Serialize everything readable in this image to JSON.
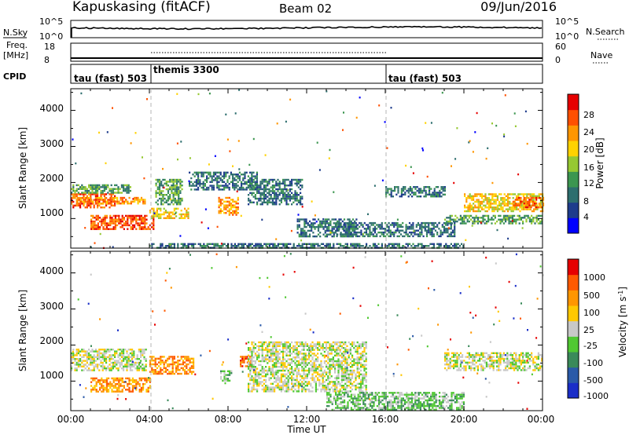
{
  "header": {
    "station": "Kapuskasing (fitACF)",
    "beam": "Beam 02",
    "date": "09/Jun/2016"
  },
  "panels": {
    "nsky_label": "N.Sky",
    "nsky_ticks": [
      "10^5",
      "10^0"
    ],
    "nsearch_label": "N.Search",
    "nsearch_ticks": [
      "10^5",
      "10^0"
    ],
    "freq_label_1": "Freq.",
    "freq_label_2": "[MHz]",
    "freq_ticks": [
      "18",
      "8"
    ],
    "nave_label": "Nave",
    "nave_ticks": [
      "60",
      "0"
    ],
    "cpid_label": "CPID",
    "cpid_segments": [
      "tau (fast) 503",
      "themis 3300",
      "tau (fast) 503"
    ]
  },
  "axes": {
    "ylabel": "Slant Range [km]",
    "yticks": [
      "1000",
      "2000",
      "3000",
      "4000"
    ],
    "xlabel": "Time UT",
    "xticks": [
      "00:00",
      "04:00",
      "08:00",
      "12:00",
      "16:00",
      "20:00",
      "00:00"
    ]
  },
  "power_colorbar": {
    "label": "Power [dB]",
    "ticks": [
      "4",
      "8",
      "12",
      "16",
      "20",
      "24",
      "28"
    ],
    "colors": [
      "#0000ff",
      "#1e3c8c",
      "#2d6e6e",
      "#3c9650",
      "#96c832",
      "#ffd200",
      "#ff9600",
      "#ff5000",
      "#e60000"
    ]
  },
  "velocity_colorbar": {
    "label_main": "Velocity",
    "label_unit": "[m s",
    "label_sup": "-1",
    "label_close": "]",
    "ticks": [
      "1000",
      "500",
      "100",
      "25",
      "-25",
      "-100",
      "-500",
      "-1000"
    ],
    "colors": [
      "#1a2ec8",
      "#2a5aa8",
      "#3a8a5a",
      "#50c832",
      "#c8c8c8",
      "#ffc800",
      "#ff9600",
      "#ff5a00",
      "#e60000"
    ]
  },
  "chart_data": {
    "type": "heatmap",
    "x": {
      "label": "Time UT",
      "range_hours": [
        0,
        24
      ],
      "ticks": [
        "00:00",
        "04:00",
        "08:00",
        "12:00",
        "16:00",
        "20:00",
        "00:00"
      ]
    },
    "y": {
      "label": "Slant Range [km]",
      "range": [
        180,
        4600
      ],
      "ticks": [
        1000,
        2000,
        3000,
        4000
      ]
    },
    "cpid_changes_hours": [
      4,
      16
    ],
    "power_clusters": [
      {
        "t": [
          0.0,
          2.2
        ],
        "r": [
          1300,
          1700
        ],
        "level": 7
      },
      {
        "t": [
          0.3,
          3.8
        ],
        "r": [
          1400,
          1600
        ],
        "level": 6
      },
      {
        "t": [
          0.0,
          3.0
        ],
        "r": [
          1700,
          1950
        ],
        "level": 3
      },
      {
        "t": [
          1.0,
          4.2
        ],
        "r": [
          700,
          1100
        ],
        "level": 7
      },
      {
        "t": [
          4.0,
          6.0
        ],
        "r": [
          1000,
          1300
        ],
        "level": 5
      },
      {
        "t": [
          4.3,
          5.7
        ],
        "r": [
          1400,
          2100
        ],
        "level": 3
      },
      {
        "t": [
          6.0,
          9.5
        ],
        "r": [
          1800,
          2300
        ],
        "level": 2
      },
      {
        "t": [
          7.5,
          8.5
        ],
        "r": [
          1100,
          1600
        ],
        "level": 6
      },
      {
        "t": [
          9.0,
          11.8
        ],
        "r": [
          1400,
          2100
        ],
        "level": 2
      },
      {
        "t": [
          11.5,
          14.5
        ],
        "r": [
          500,
          1000
        ],
        "level": 2
      },
      {
        "t": [
          13.5,
          19.5
        ],
        "r": [
          500,
          900
        ],
        "level": 2
      },
      {
        "t": [
          16.0,
          19.0
        ],
        "r": [
          1600,
          1900
        ],
        "level": 2
      },
      {
        "t": [
          20.0,
          24.0
        ],
        "r": [
          1200,
          1700
        ],
        "level": 5
      },
      {
        "t": [
          22.5,
          24.0
        ],
        "r": [
          1300,
          1600
        ],
        "level": 7
      },
      {
        "t": [
          19.0,
          24.0
        ],
        "r": [
          850,
          1100
        ],
        "level": 3
      },
      {
        "t": [
          4.0,
          20.0
        ],
        "r": [
          200,
          320
        ],
        "level": 2
      }
    ],
    "velocity_clusters": [
      {
        "t": [
          0.0,
          3.8
        ],
        "r": [
          1300,
          1900
        ],
        "level": 4
      },
      {
        "t": [
          1.0,
          4.0
        ],
        "r": [
          700,
          1100
        ],
        "level": 6
      },
      {
        "t": [
          4.0,
          6.2
        ],
        "r": [
          1200,
          1700
        ],
        "level": 6
      },
      {
        "t": [
          7.6,
          8.2
        ],
        "r": [
          1000,
          1300
        ],
        "level": 3
      },
      {
        "t": [
          8.6,
          9.2
        ],
        "r": [
          1400,
          1700
        ],
        "level": 7
      },
      {
        "t": [
          9.0,
          15.0
        ],
        "r": [
          700,
          2100
        ],
        "level": 4
      },
      {
        "t": [
          13.0,
          20.0
        ],
        "r": [
          200,
          700
        ],
        "level": 3
      },
      {
        "t": [
          19.0,
          24.0
        ],
        "r": [
          1300,
          1800
        ],
        "level": 4
      }
    ]
  }
}
